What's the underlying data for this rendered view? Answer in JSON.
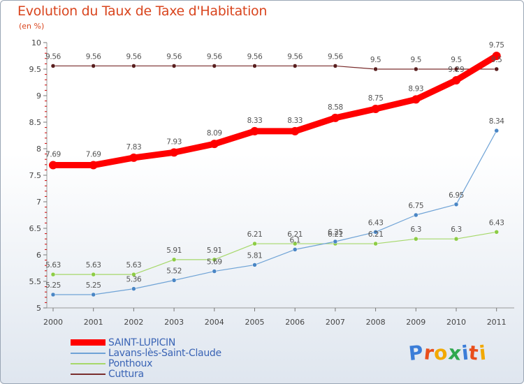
{
  "title": "Evolution du Taux de Taxe d'Habitation",
  "subtitle": "(en %)",
  "logo_text": "Proxiti",
  "chart_data": {
    "type": "line",
    "title": "Evolution du Taux de Taxe d'Habitation",
    "ylabel": "(en %)",
    "xlabel": "",
    "x": [
      "2000",
      "2001",
      "2002",
      "2003",
      "2004",
      "2005",
      "2006",
      "2007",
      "2008",
      "2009",
      "2010",
      "2011"
    ],
    "ylim": [
      5,
      10
    ],
    "yticks": [
      "5",
      "5.5",
      "6",
      "6.5",
      "7",
      "7.5",
      "8",
      "8.5",
      "9",
      "9.5",
      "10"
    ],
    "grid": false,
    "legend_position": "bottom-left",
    "series": [
      {
        "name": "SAINT-LUPICIN",
        "color": "#ff0000",
        "values": [
          7.69,
          7.69,
          7.83,
          7.93,
          8.09,
          8.33,
          8.33,
          8.58,
          8.75,
          8.93,
          9.29,
          9.75
        ],
        "labels": [
          "7.69",
          "7.69",
          "7.83",
          "7.93",
          "8.09",
          "8.33",
          "8.33",
          "8.58",
          "8.75",
          "8.93",
          "",
          "9.75"
        ]
      },
      {
        "name": "Lavans-lès-Saint-Claude",
        "color": "#6fa3d6",
        "values": [
          5.25,
          5.25,
          5.36,
          5.52,
          5.69,
          5.81,
          6.1,
          6.25,
          6.43,
          6.75,
          6.95,
          8.34
        ],
        "labels": [
          "5.25",
          "5.25",
          "5.36",
          "5.52",
          "5.69",
          "5.81",
          "6.1",
          "6.25",
          "6.43",
          "6.75",
          "6.95",
          "8.34"
        ]
      },
      {
        "name": "Ponthoux",
        "color": "#a6d86a",
        "values": [
          5.63,
          5.63,
          5.63,
          5.91,
          5.91,
          6.21,
          6.21,
          6.21,
          6.21,
          6.3,
          6.3,
          6.43
        ],
        "labels": [
          "5.63",
          "5.63",
          "5.63",
          "5.91",
          "5.91",
          "6.21",
          "6.21",
          "6.21",
          "6.21",
          "6.3",
          "6.3",
          "6.43"
        ]
      },
      {
        "name": "Cuttura",
        "color": "#7a2d2d",
        "values": [
          9.56,
          9.56,
          9.56,
          9.56,
          9.56,
          9.56,
          9.56,
          9.56,
          9.5,
          9.5,
          9.5,
          9.5
        ],
        "labels": [
          "9.56",
          "9.56",
          "9.56",
          "9.56",
          "9.56",
          "9.56",
          "9.56",
          "9.56",
          "9.5",
          "9.5",
          "9.5",
          "9.5"
        ]
      }
    ],
    "extra_labels": [
      {
        "series": 0,
        "index": 10,
        "text": "9.29"
      }
    ]
  }
}
